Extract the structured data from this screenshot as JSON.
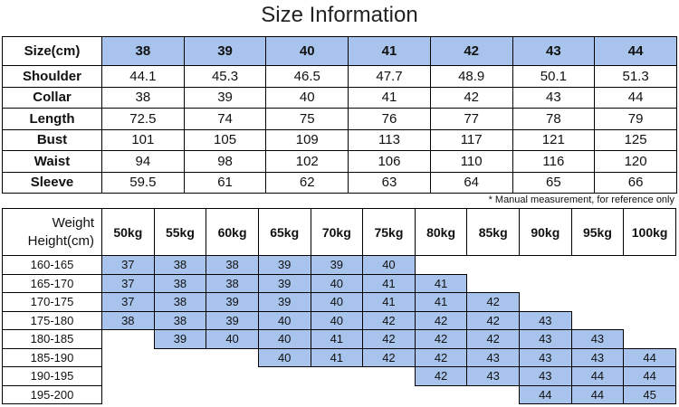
{
  "title": "Size Information",
  "size_table": {
    "header_label": "Size(cm)",
    "sizes": [
      "38",
      "39",
      "40",
      "41",
      "42",
      "43",
      "44"
    ],
    "rows": [
      {
        "label": "Shoulder",
        "values": [
          "44.1",
          "45.3",
          "46.5",
          "47.7",
          "48.9",
          "50.1",
          "51.3"
        ]
      },
      {
        "label": "Collar",
        "values": [
          "38",
          "39",
          "40",
          "41",
          "42",
          "43",
          "44"
        ]
      },
      {
        "label": "Length",
        "values": [
          "72.5",
          "74",
          "75",
          "76",
          "77",
          "78",
          "79"
        ]
      },
      {
        "label": "Bust",
        "values": [
          "101",
          "105",
          "109",
          "113",
          "117",
          "121",
          "125"
        ]
      },
      {
        "label": "Waist",
        "values": [
          "94",
          "98",
          "102",
          "106",
          "110",
          "116",
          "120"
        ]
      },
      {
        "label": "Sleeve",
        "values": [
          "59.5",
          "61",
          "62",
          "63",
          "64",
          "65",
          "66"
        ]
      }
    ]
  },
  "note": "* Manual measurement, for reference only",
  "rec_table": {
    "corner_top": "Weight",
    "corner_bottom": "Height(cm)",
    "weights": [
      "50kg",
      "55kg",
      "60kg",
      "65kg",
      "70kg",
      "75kg",
      "80kg",
      "85kg",
      "90kg",
      "95kg",
      "100kg"
    ],
    "rows": [
      {
        "height": "160-165",
        "cells": [
          "37",
          "38",
          "38",
          "39",
          "39",
          "40",
          "",
          "",
          "",
          "",
          ""
        ]
      },
      {
        "height": "165-170",
        "cells": [
          "37",
          "38",
          "38",
          "39",
          "40",
          "41",
          "41",
          "",
          "",
          "",
          ""
        ]
      },
      {
        "height": "170-175",
        "cells": [
          "37",
          "38",
          "39",
          "39",
          "40",
          "41",
          "41",
          "42",
          "",
          "",
          ""
        ]
      },
      {
        "height": "175-180",
        "cells": [
          "38",
          "38",
          "39",
          "40",
          "40",
          "42",
          "42",
          "42",
          "43",
          "",
          ""
        ]
      },
      {
        "height": "180-185",
        "cells": [
          "",
          "39",
          "40",
          "40",
          "41",
          "42",
          "42",
          "42",
          "43",
          "43",
          ""
        ]
      },
      {
        "height": "185-190",
        "cells": [
          "",
          "",
          "",
          "40",
          "41",
          "42",
          "42",
          "43",
          "43",
          "43",
          "44"
        ]
      },
      {
        "height": "190-195",
        "cells": [
          "",
          "",
          "",
          "",
          "",
          "",
          "42",
          "43",
          "43",
          "44",
          "44"
        ]
      },
      {
        "height": "195-200",
        "cells": [
          "",
          "",
          "",
          "",
          "",
          "",
          "",
          "",
          "44",
          "44",
          "45"
        ]
      }
    ]
  },
  "colors": {
    "accent_blue": "#a9c4ec",
    "border": "#000000"
  }
}
